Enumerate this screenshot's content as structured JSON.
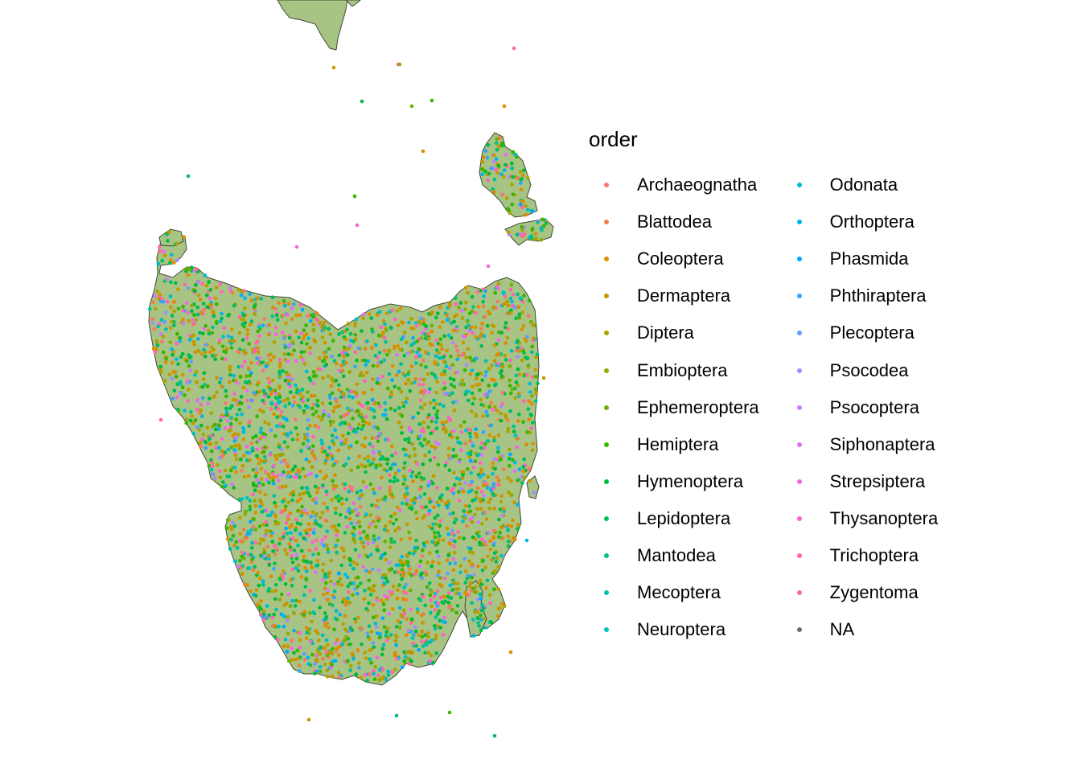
{
  "map": {
    "land_fill": "#a8c484",
    "land_stroke": "#3d4a35",
    "background": "#ffffff"
  },
  "legend": {
    "title": "order",
    "left_column": [
      {
        "label": "Archaeognatha",
        "color": "#F8766D"
      },
      {
        "label": "Blattodea",
        "color": "#EE7F46"
      },
      {
        "label": "Coleoptera",
        "color": "#DE8C00"
      },
      {
        "label": "Dermaptera",
        "color": "#C79800"
      },
      {
        "label": "Diptera",
        "color": "#AEA200"
      },
      {
        "label": "Embioptera",
        "color": "#93AA00"
      },
      {
        "label": "Ephemeroptera",
        "color": "#6FB000"
      },
      {
        "label": "Hemiptera",
        "color": "#39B600"
      },
      {
        "label": "Hymenoptera",
        "color": "#00BA38"
      },
      {
        "label": "Lepidoptera",
        "color": "#00BD5C"
      },
      {
        "label": "Mantodea",
        "color": "#00C08B"
      },
      {
        "label": "Mecoptera",
        "color": "#00C0A9"
      },
      {
        "label": "Neuroptera",
        "color": "#00BFC4"
      }
    ],
    "right_column": [
      {
        "label": "Odonata",
        "color": "#00BCD8"
      },
      {
        "label": "Orthoptera",
        "color": "#00B5E9"
      },
      {
        "label": "Phasmida",
        "color": "#00A9FF"
      },
      {
        "label": "Phthiraptera",
        "color": "#35A2FF"
      },
      {
        "label": "Plecoptera",
        "color": "#619CFF"
      },
      {
        "label": "Psocodea",
        "color": "#9F8CFF"
      },
      {
        "label": "Psocoptera",
        "color": "#C77CFF"
      },
      {
        "label": "Siphonaptera",
        "color": "#E36EF6"
      },
      {
        "label": "Strepsiptera",
        "color": "#F564E3"
      },
      {
        "label": "Thysanoptera",
        "color": "#FF61C3"
      },
      {
        "label": "Trichoptera",
        "color": "#FF64B0"
      },
      {
        "label": "Zygentoma",
        "color": "#FF6C91"
      },
      {
        "label": "NA",
        "color": "#6E6E6E"
      }
    ]
  }
}
